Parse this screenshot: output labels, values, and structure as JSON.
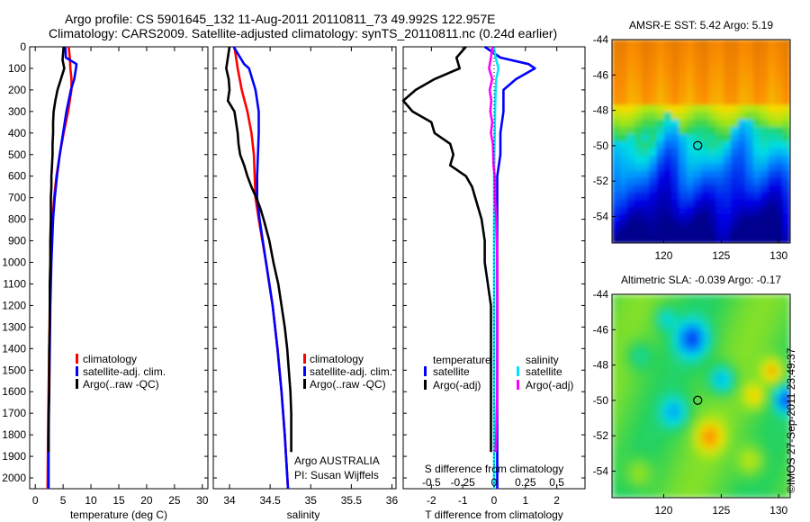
{
  "header": {
    "title_line1": "Argo profile: CS 5901645_132 11-Aug-2011 20110811_73 49.992S 122.957E",
    "title_line2": "Climatology: CARS2009. Satellite-adjusted climatology: synTS_20110811.nc (0.24d earlier)"
  },
  "stamp": "©IMOS 27-Sep-2011 23:49:37",
  "colors": {
    "climatology": "#ff0000",
    "satellite": "#0000ff",
    "argo": "#000000",
    "salinity_sat": "#00e5ff",
    "salinity_argo": "#ff00ff"
  },
  "chart_data": [
    {
      "type": "line",
      "panel": "temperature",
      "xlabel": "temperature (deg C)",
      "ylabel": "",
      "xlim": [
        -1,
        31
      ],
      "ylim": [
        2050,
        0
      ],
      "xticks": [
        0,
        5,
        10,
        15,
        20,
        25,
        30
      ],
      "yticks": [
        0,
        100,
        200,
        300,
        400,
        500,
        600,
        700,
        800,
        900,
        1000,
        1100,
        1200,
        1300,
        1400,
        1500,
        1600,
        1700,
        1800,
        1900,
        2000
      ],
      "legend": [
        "climatology",
        "satellite-adj. clim.",
        "Argo(..raw -QC)"
      ],
      "series": [
        {
          "name": "climatology",
          "color": "#ff0000",
          "depth": [
            0,
            50,
            100,
            150,
            200,
            300,
            400,
            500,
            600,
            700,
            800,
            1000,
            1200,
            1400,
            1600,
            1800,
            2050
          ],
          "values": [
            6.0,
            6.2,
            6.3,
            6.5,
            6.5,
            5.9,
            5.1,
            4.4,
            3.8,
            3.4,
            3.1,
            2.8,
            2.6,
            2.5,
            2.4,
            2.3,
            2.2
          ]
        },
        {
          "name": "satellite-adj. clim.",
          "color": "#0000ff",
          "depth": [
            0,
            50,
            80,
            100,
            150,
            200,
            300,
            400,
            500,
            600,
            700,
            800,
            1000,
            1200,
            1400,
            1600,
            1800,
            2050
          ],
          "values": [
            5.4,
            5.5,
            7.4,
            7.3,
            7.0,
            6.4,
            5.6,
            5.0,
            4.4,
            3.9,
            3.5,
            3.2,
            2.9,
            2.7,
            2.6,
            2.5,
            2.4,
            2.4
          ]
        },
        {
          "name": "Argo(..raw -QC)",
          "color": "#000000",
          "depth": [
            0,
            60,
            100,
            150,
            200,
            250,
            300,
            350,
            400,
            450,
            500,
            550,
            600,
            650,
            700,
            800,
            900,
            1000,
            1100,
            1200,
            1300,
            1400,
            1500,
            1600,
            1700,
            1800,
            1850,
            1880
          ],
          "values": [
            5.1,
            4.9,
            5.2,
            4.6,
            4.0,
            3.6,
            3.3,
            3.2,
            3.2,
            3.1,
            3.1,
            3.0,
            2.9,
            2.9,
            2.8,
            2.8,
            2.7,
            2.7,
            2.6,
            2.6,
            2.6,
            2.5,
            2.5,
            2.5,
            2.4,
            2.4,
            2.4,
            2.4
          ]
        }
      ]
    },
    {
      "type": "line",
      "panel": "salinity",
      "xlabel": "salinity",
      "ylabel": "",
      "xlim": [
        33.8,
        36.05
      ],
      "ylim": [
        2050,
        0
      ],
      "xticks": [
        34,
        34.5,
        35,
        35.5,
        36
      ],
      "legend": [
        "climatology",
        "satellite-adj. clim.",
        "Argo(..raw -QC)"
      ],
      "annotation": [
        "Argo AUSTRALIA",
        "PI: Susan Wijffels"
      ],
      "series": [
        {
          "name": "climatology",
          "color": "#ff0000",
          "depth": [
            0,
            100,
            200,
            300,
            400,
            500,
            600,
            700,
            800,
            1000,
            1200,
            1400,
            1600,
            1800,
            2050
          ],
          "values": [
            34.06,
            34.1,
            34.15,
            34.22,
            34.27,
            34.3,
            34.31,
            34.32,
            34.36,
            34.45,
            34.53,
            34.59,
            34.64,
            34.68,
            34.72
          ]
        },
        {
          "name": "satellite-adj. clim.",
          "color": "#0000ff",
          "depth": [
            0,
            80,
            100,
            200,
            300,
            400,
            500,
            600,
            700,
            800,
            1000,
            1200,
            1400,
            1600,
            1800,
            2050
          ],
          "values": [
            34.05,
            34.18,
            34.24,
            34.32,
            34.36,
            34.36,
            34.35,
            34.34,
            34.34,
            34.37,
            34.45,
            34.53,
            34.59,
            34.64,
            34.68,
            34.72
          ]
        },
        {
          "name": "Argo(..raw -QC)",
          "color": "#000000",
          "depth": [
            0,
            50,
            100,
            150,
            200,
            250,
            300,
            350,
            400,
            450,
            500,
            550,
            600,
            650,
            700,
            750,
            800,
            900,
            1000,
            1100,
            1200,
            1300,
            1400,
            1500,
            1600,
            1700,
            1800,
            1850,
            1880
          ],
          "values": [
            34.0,
            33.98,
            33.96,
            33.99,
            34.0,
            33.98,
            34.06,
            34.08,
            34.1,
            34.11,
            34.13,
            34.18,
            34.22,
            34.27,
            34.33,
            34.38,
            34.42,
            34.49,
            34.54,
            34.6,
            34.64,
            34.68,
            34.71,
            34.73,
            34.75,
            34.76,
            34.76,
            34.76,
            34.76
          ]
        }
      ]
    },
    {
      "type": "line",
      "panel": "difference",
      "xlabel": "T difference from climatology",
      "xlabel_top": "S difference from climatology",
      "xlim": [
        -2.9,
        2.9
      ],
      "ylim": [
        2050,
        0
      ],
      "xticks": [
        -2,
        -1,
        0,
        1,
        2
      ],
      "s_ticks": [
        "-0.5",
        "-0.25",
        "0",
        "0.25",
        "0.5"
      ],
      "legend_headers": [
        "temperature",
        "salinity"
      ],
      "legend": [
        "satellite",
        "Argo(-adj)",
        "satellite",
        "Argo(-adj)"
      ],
      "series": [
        {
          "name": "temperature satellite",
          "color": "#0000ff",
          "depth": [
            0,
            50,
            80,
            100,
            150,
            200,
            300,
            400,
            500,
            600,
            700,
            800,
            1000,
            1500,
            2050
          ],
          "values": [
            -0.3,
            0.2,
            1.1,
            1.3,
            0.7,
            0.3,
            0.3,
            0.2,
            0.2,
            0.1,
            0.1,
            0.1,
            0.1,
            0.1,
            0.1
          ]
        },
        {
          "name": "temperature Argo(-adj)",
          "color": "#000000",
          "depth": [
            0,
            50,
            100,
            150,
            200,
            250,
            300,
            350,
            400,
            450,
            500,
            550,
            600,
            650,
            700,
            800,
            900,
            1000,
            1200,
            1400,
            1600,
            1800,
            1880
          ],
          "values": [
            -0.9,
            -1.2,
            -1.1,
            -1.9,
            -2.5,
            -2.9,
            -2.6,
            -2.0,
            -1.9,
            -1.4,
            -1.3,
            -1.4,
            -0.9,
            -0.7,
            -0.6,
            -0.4,
            -0.3,
            -0.3,
            -0.1,
            -0.1,
            -0.1,
            -0.1,
            -0.1
          ]
        },
        {
          "name": "salinity satellite",
          "color": "#00e5ff",
          "depth": [
            0,
            50,
            100,
            150,
            200,
            300,
            400,
            500,
            600,
            700,
            800,
            1000,
            1500,
            2050
          ],
          "values": [
            -0.01,
            0.05,
            0.14,
            0.07,
            0.05,
            0.03,
            0.02,
            0.01,
            0.0,
            0.0,
            0.0,
            0.0,
            0.0,
            0.0
          ]
        },
        {
          "name": "salinity Argo(-adj)",
          "color": "#ff00ff",
          "depth": [
            0,
            50,
            100,
            150,
            200,
            250,
            300,
            350,
            400,
            450,
            500,
            550,
            600,
            650,
            700,
            800,
            900,
            1000,
            1200,
            1400,
            1600,
            1800,
            1880
          ],
          "values": [
            -0.05,
            -0.1,
            -0.16,
            -0.06,
            -0.14,
            -0.09,
            -0.12,
            -0.06,
            -0.1,
            -0.04,
            -0.03,
            -0.02,
            0.02,
            0.03,
            0.03,
            0.07,
            0.09,
            0.1,
            0.11,
            0.11,
            0.1,
            0.07,
            0.05
          ]
        }
      ]
    },
    {
      "type": "heatmap",
      "panel": "sst_map",
      "title": "AMSR-E SST: 5.42 Argo: 5.19",
      "xlim": [
        115.5,
        131
      ],
      "ylim": [
        -55.5,
        -44
      ],
      "xticks": [
        120,
        125,
        130
      ],
      "yticks": [
        -44,
        -46,
        -48,
        -50,
        -52,
        -54
      ],
      "marker": {
        "lon": 122.957,
        "lat": -49.992
      }
    },
    {
      "type": "heatmap",
      "panel": "sla_map",
      "title": "Altimetric SLA: -0.039 Argo: -0.17",
      "xlim": [
        115.5,
        131
      ],
      "ylim": [
        -55.5,
        -44
      ],
      "xticks": [
        120,
        125,
        130
      ],
      "yticks": [
        -44,
        -46,
        -48,
        -50,
        -52,
        -54
      ],
      "marker": {
        "lon": 122.957,
        "lat": -49.992
      }
    }
  ]
}
